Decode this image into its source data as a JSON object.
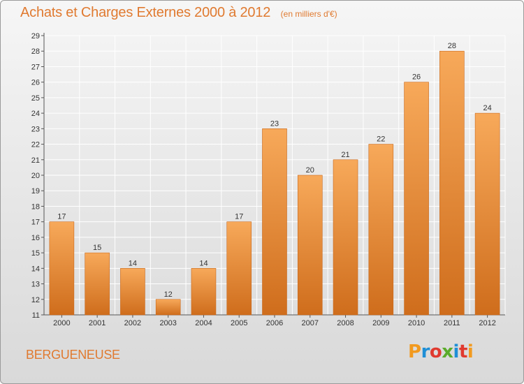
{
  "header": {
    "title": "Achats et Charges Externes 2000 à 2012",
    "unit": "(en milliers d'€)"
  },
  "footer": {
    "commune": "BERGUENEUSE",
    "logo_text": "Proxiti",
    "logo_colors": [
      "#f29a1f",
      "#1f8fd6",
      "#e03a2f",
      "#5aab2a",
      "#1f8fd6",
      "#e03a2f",
      "#f29a1f"
    ]
  },
  "colors": {
    "bar_top": "#f7a95a",
    "bar_bottom": "#cf6d1c",
    "bar_edge": "#c8681c",
    "grid": "#ffffff",
    "accent": "#e07a30"
  },
  "chart_data": {
    "type": "bar",
    "title": "Achats et Charges Externes 2000 à 2012",
    "xlabel": "",
    "ylabel": "",
    "categories": [
      "2000",
      "2001",
      "2002",
      "2003",
      "2004",
      "2005",
      "2006",
      "2007",
      "2008",
      "2009",
      "2010",
      "2011",
      "2012"
    ],
    "values": [
      17,
      15,
      14,
      12,
      14,
      17,
      23,
      20,
      21,
      22,
      26,
      28,
      24
    ],
    "ylim": [
      11,
      29
    ],
    "yticks": [
      11,
      12,
      13,
      14,
      15,
      16,
      17,
      18,
      19,
      20,
      21,
      22,
      23,
      24,
      25,
      26,
      27,
      28,
      29
    ],
    "grid": true,
    "data_labels": true
  }
}
